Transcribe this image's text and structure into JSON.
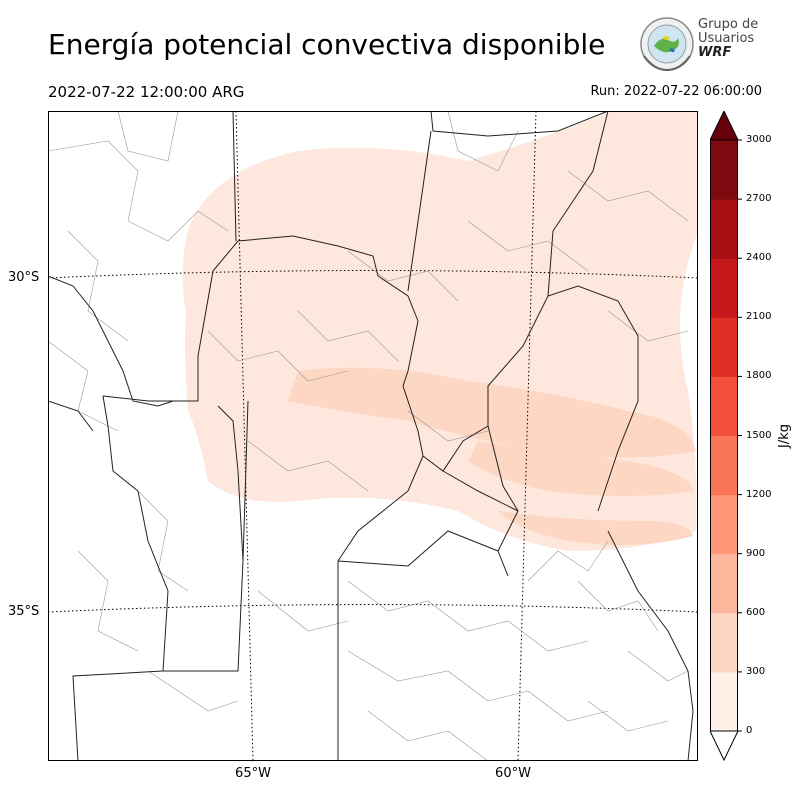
{
  "title": "Energía potencial convectiva disponible",
  "valid_time": "2022-07-22 12:00:00 ARG",
  "run_time": "Run: 2022-07-22 06:00:00",
  "logo": {
    "line1": "Grupo de",
    "line2": "Usuarios",
    "line3": "WRF"
  },
  "latitude_labels": [
    "30°S",
    "35°S"
  ],
  "longitude_labels": [
    "65°W",
    "60°W"
  ],
  "colorbar": {
    "unit": "J/kg",
    "ticks": [
      "0",
      "300",
      "600",
      "900",
      "1200",
      "1500",
      "1800",
      "2100",
      "2400",
      "2700",
      "3000"
    ],
    "colors": [
      "#fff0e8",
      "#fdd6c4",
      "#fcb89c",
      "#fc9674",
      "#fa7657",
      "#f24f3b",
      "#e02e25",
      "#c4181b",
      "#a60e14",
      "#7f0a10"
    ],
    "extend_over_color": "#67000d",
    "extend_under_color": "#ffffff"
  },
  "field_colors": {
    "level_0": "#fee8dd",
    "level_1": "#fdd6c4"
  }
}
